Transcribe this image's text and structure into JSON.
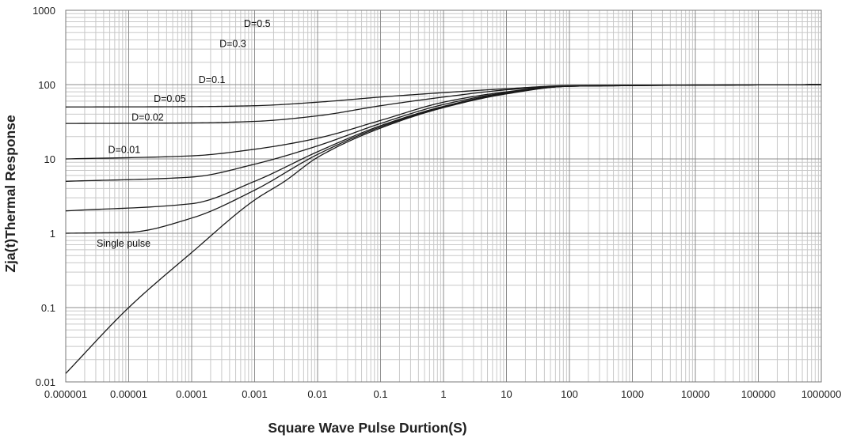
{
  "chart_data": {
    "type": "line",
    "title": "",
    "xlabel": "Square Wave Pulse Durtion(S)",
    "ylabel": "Zja(t)Thermal Response",
    "x_scale": "log",
    "y_scale": "log",
    "xlim": [
      1e-06,
      1000000
    ],
    "ylim": [
      0.01,
      1000
    ],
    "grid": true,
    "x_tick_labels": [
      "0.000001",
      "0.00001",
      "0.0001",
      "0.001",
      "0.01",
      "0.1",
      "1",
      "10",
      "100",
      "1000",
      "10000",
      "100000",
      "1000000"
    ],
    "y_tick_labels": [
      "0.01",
      "0.1",
      "1",
      "10",
      "100",
      "1000"
    ],
    "series": [
      {
        "name": "D=0.5",
        "x": [
          1e-06,
          0.0001,
          0.001,
          0.01,
          0.1,
          1,
          10,
          100,
          1000000
        ],
        "y": [
          50,
          50.5,
          52,
          58,
          68,
          78,
          88,
          97,
          100
        ]
      },
      {
        "name": "D=0.3",
        "x": [
          1e-06,
          0.0001,
          0.001,
          0.01,
          0.1,
          1,
          10,
          100,
          1000000
        ],
        "y": [
          30,
          30.5,
          32,
          38,
          52,
          68,
          85,
          96,
          100
        ]
      },
      {
        "name": "D=0.1",
        "x": [
          1e-06,
          0.0001,
          0.001,
          0.01,
          0.1,
          1,
          10,
          100,
          1000000
        ],
        "y": [
          10,
          11,
          13.5,
          19,
          33,
          58,
          80,
          96,
          100
        ]
      },
      {
        "name": "D=0.05",
        "x": [
          1e-06,
          0.0001,
          0.001,
          0.01,
          0.1,
          1,
          10,
          100,
          1000000
        ],
        "y": [
          5,
          5.7,
          8.5,
          15,
          30,
          54,
          78,
          95,
          100
        ]
      },
      {
        "name": "D=0.02",
        "x": [
          1e-06,
          0.0001,
          0.001,
          0.01,
          0.1,
          1,
          10,
          100,
          1000000
        ],
        "y": [
          2,
          2.5,
          5,
          12.5,
          28,
          51,
          77,
          95,
          100
        ]
      },
      {
        "name": "D=0.01",
        "x": [
          1e-06,
          1e-05,
          0.0001,
          0.001,
          0.01,
          0.1,
          1,
          10,
          100,
          1000000
        ],
        "y": [
          1,
          1.03,
          1.6,
          3.8,
          11.5,
          27,
          50,
          76,
          95,
          100
        ]
      },
      {
        "name": "Single pulse",
        "x": [
          1e-06,
          1e-05,
          0.0001,
          0.001,
          0.003,
          0.01,
          0.1,
          1,
          10,
          100,
          1000000
        ],
        "y": [
          0.013,
          0.1,
          0.55,
          2.8,
          5,
          10.5,
          26,
          49,
          75,
          95,
          100
        ]
      }
    ],
    "annotations": [
      {
        "text": "D=0.5",
        "x": 0.0011,
        "y": 600
      },
      {
        "text": "D=0.3",
        "x": 0.00045,
        "y": 320
      },
      {
        "text": "D=0.1",
        "x": 0.00021,
        "y": 105
      },
      {
        "text": "D=0.05",
        "x": 4.5e-05,
        "y": 58
      },
      {
        "text": "D=0.02",
        "x": 2e-05,
        "y": 33
      },
      {
        "text": "D=0.01",
        "x": 8.5e-06,
        "y": 12
      },
      {
        "text": "Single pulse",
        "x": 8.3e-06,
        "y": 0.66
      }
    ]
  }
}
